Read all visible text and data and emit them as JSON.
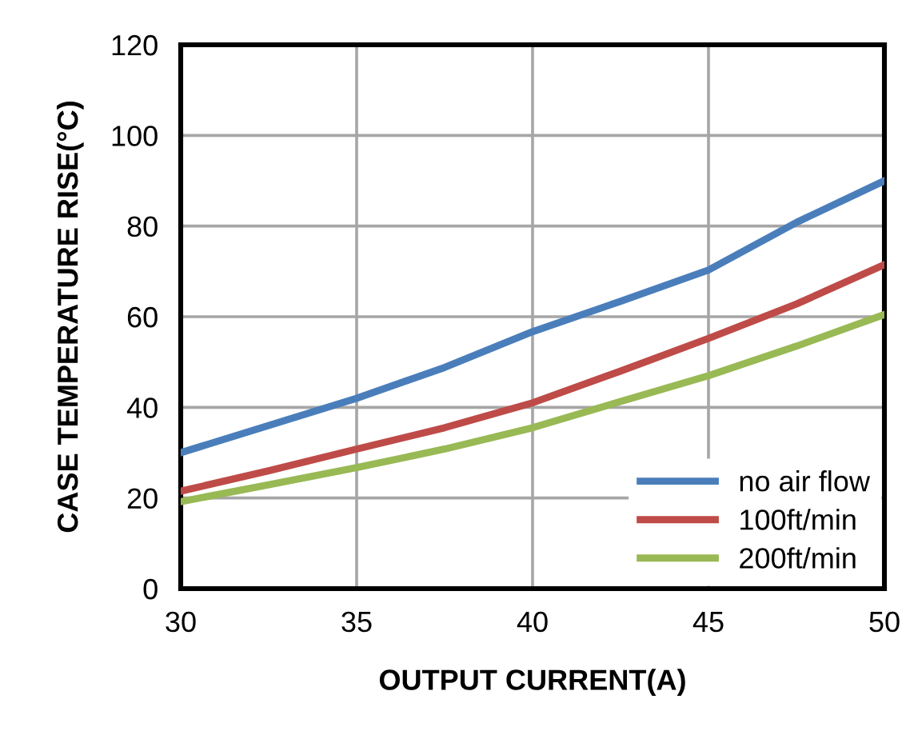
{
  "chart_data": {
    "type": "line",
    "xlabel": "OUTPUT CURRENT(A)",
    "ylabel": "CASE TEMPERATURE RISE(°C)",
    "x": [
      30,
      32.5,
      35,
      37.5,
      40,
      42.5,
      45,
      47.5,
      50
    ],
    "series": [
      {
        "name": "no air flow",
        "color": "#4a7ebb",
        "values": [
          30,
          36,
          42,
          48.8,
          56.7,
          63.4,
          70.3,
          80.8,
          90
        ]
      },
      {
        "name": "100ft/min",
        "color": "#be4b48",
        "values": [
          21.5,
          26,
          30.8,
          35.5,
          41,
          48,
          55.2,
          62.8,
          71.5
        ]
      },
      {
        "name": "200ft/min",
        "color": "#98b954",
        "values": [
          19.2,
          22.9,
          26.7,
          30.8,
          35.5,
          41.3,
          47,
          53.5,
          60.5
        ]
      }
    ],
    "xlim": [
      30,
      50
    ],
    "ylim": [
      0,
      120
    ],
    "xticks": [
      30,
      35,
      40,
      45,
      50
    ],
    "yticks": [
      0,
      20,
      40,
      60,
      80,
      100,
      120
    ],
    "grid": true,
    "legend": "bottom right",
    "marker": "none",
    "line_style": "solid"
  }
}
